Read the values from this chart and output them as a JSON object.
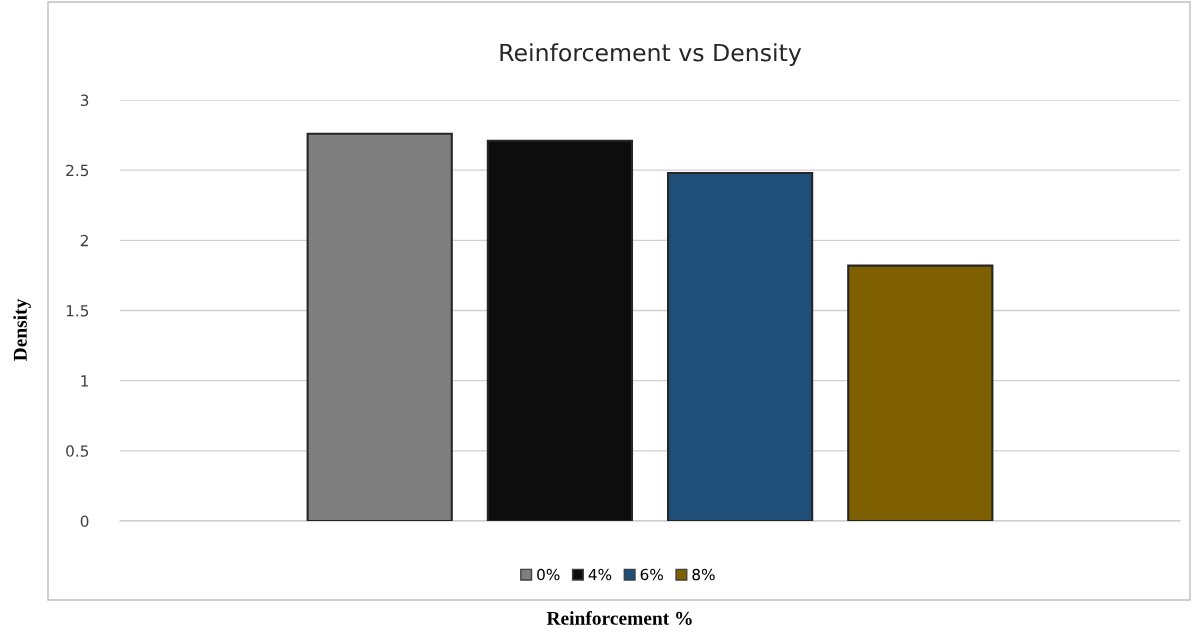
{
  "chart_data": {
    "type": "bar",
    "title": "Reinforcement vs Density",
    "xlabel": "Reinforcement %",
    "ylabel": "Density",
    "categories": [
      null
    ],
    "series": [
      {
        "name": "0%",
        "color": "#7f7f7f",
        "values": [
          2.76
        ]
      },
      {
        "name": "4%",
        "color": "#0d0d0d",
        "values": [
          2.71
        ]
      },
      {
        "name": "6%",
        "color": "#1f4e79",
        "values": [
          2.48
        ]
      },
      {
        "name": "8%",
        "color": "#7f6000",
        "values": [
          1.82
        ]
      }
    ],
    "ylim": [
      0,
      3
    ],
    "yticks": [
      0,
      0.5,
      1,
      1.5,
      2,
      2.5,
      3
    ],
    "grid": "y",
    "legend": "bottom"
  }
}
